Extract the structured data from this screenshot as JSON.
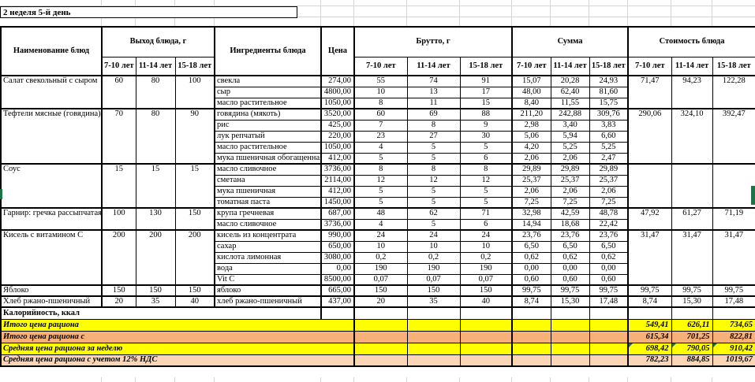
{
  "title": "2 неделя 5-й день",
  "header": {
    "dish": "Наименование блюд",
    "out_group": "Выход блюда, г",
    "ingredients": "Ингредиенты блюда",
    "price": "Цена",
    "brutto_group": "Брутто, г",
    "sum_group": "Сумма",
    "cost_group": "Стоимость блюда",
    "ages": [
      "7-10 лет",
      "11-14 лет",
      "15-18 лет"
    ]
  },
  "dishes": [
    {
      "name": "Салат свекольный с сыром",
      "out": [
        "60",
        "80",
        "100"
      ],
      "cost": [
        "71,47",
        "94,23",
        "122,28"
      ],
      "ingredients": [
        {
          "name": "свекла",
          "price": "274,00",
          "brutto": [
            "55",
            "74",
            "91"
          ],
          "sum": [
            "15,07",
            "20,28",
            "24,93"
          ]
        },
        {
          "name": "сыр",
          "price": "4800,00",
          "brutto": [
            "10",
            "13",
            "17"
          ],
          "sum": [
            "48,00",
            "62,40",
            "81,60"
          ]
        },
        {
          "name": "масло растительное",
          "price": "1050,00",
          "brutto": [
            "8",
            "11",
            "15"
          ],
          "sum": [
            "8,40",
            "11,55",
            "15,75"
          ]
        }
      ]
    },
    {
      "name": "Тефтели мясные (говядина)",
      "out": [
        "70",
        "80",
        "90"
      ],
      "cost": [
        "290,06",
        "324,10",
        "392,47"
      ],
      "ingredients": [
        {
          "name": "говядина (мякоть)",
          "price": "3520,00",
          "brutto": [
            "60",
            "69",
            "88"
          ],
          "sum": [
            "211,20",
            "242,88",
            "309,76"
          ]
        },
        {
          "name": "рис",
          "price": "425,00",
          "brutto": [
            "7",
            "8",
            "9"
          ],
          "sum": [
            "2,98",
            "3,40",
            "3,83"
          ]
        },
        {
          "name": "лук репчатый",
          "price": "220,00",
          "brutto": [
            "23",
            "27",
            "30"
          ],
          "sum": [
            "5,06",
            "5,94",
            "6,60"
          ]
        },
        {
          "name": "масло растительное",
          "price": "1050,00",
          "brutto": [
            "4",
            "5",
            "5"
          ],
          "sum": [
            "4,20",
            "5,25",
            "5,25"
          ]
        },
        {
          "name": "мука пшеничная обогащенная",
          "price": "412,00",
          "brutto": [
            "5",
            "5",
            "6"
          ],
          "sum": [
            "2,06",
            "2,06",
            "2,47"
          ]
        }
      ]
    },
    {
      "name": "Соус",
      "out": [
        "15",
        "15",
        "15"
      ],
      "cost": [
        "",
        "",
        ""
      ],
      "ingredients": [
        {
          "name": "масло сливочное",
          "price": "3736,00",
          "brutto": [
            "8",
            "8",
            "8"
          ],
          "sum": [
            "29,89",
            "29,89",
            "29,89"
          ]
        },
        {
          "name": "сметана",
          "price": "2114,00",
          "brutto": [
            "12",
            "12",
            "12"
          ],
          "sum": [
            "25,37",
            "25,37",
            "25,37"
          ]
        },
        {
          "name": "мука пшеничная",
          "price": "412,00",
          "brutto": [
            "5",
            "5",
            "5"
          ],
          "sum": [
            "2,06",
            "2,06",
            "2,06"
          ]
        },
        {
          "name": "томатная паста",
          "price": "1450,00",
          "brutto": [
            "5",
            "5",
            "5"
          ],
          "sum": [
            "7,25",
            "7,25",
            "7,25"
          ]
        }
      ]
    },
    {
      "name": "Гарнир: гречка рассыпчатая",
      "out": [
        "100",
        "130",
        "150"
      ],
      "cost": [
        "47,92",
        "61,27",
        "71,19"
      ],
      "ingredients": [
        {
          "name": "крупа гречневая",
          "price": "687,00",
          "brutto": [
            "48",
            "62",
            "71"
          ],
          "sum": [
            "32,98",
            "42,59",
            "48,78"
          ]
        },
        {
          "name": "масло сливочное",
          "price": "3736,00",
          "brutto": [
            "4",
            "5",
            "6"
          ],
          "sum": [
            "14,94",
            "18,68",
            "22,42"
          ]
        }
      ]
    },
    {
      "name": "Кисель с витамином С",
      "out": [
        "200",
        "200",
        "200"
      ],
      "cost": [
        "31,47",
        "31,47",
        "31,47"
      ],
      "ingredients": [
        {
          "name": "кисель из концентрата",
          "price": "990,00",
          "brutto": [
            "24",
            "24",
            "24"
          ],
          "sum": [
            "23,76",
            "23,76",
            "23,76"
          ]
        },
        {
          "name": "сахар",
          "price": "650,00",
          "brutto": [
            "10",
            "10",
            "10"
          ],
          "sum": [
            "6,50",
            "6,50",
            "6,50"
          ]
        },
        {
          "name": "кислота лимонная",
          "price": "3080,00",
          "brutto": [
            "0,2",
            "0,2",
            "0,2"
          ],
          "sum": [
            "0,62",
            "0,62",
            "0,62"
          ]
        },
        {
          "name": "вода",
          "price": "0,00",
          "brutto": [
            "190",
            "190",
            "190"
          ],
          "sum": [
            "0,00",
            "0,00",
            "0,00"
          ]
        },
        {
          "name": "Vit C",
          "price": "8500,00",
          "brutto": [
            "0,07",
            "0,07",
            "0,07"
          ],
          "sum": [
            "0,60",
            "0,60",
            "0,60"
          ]
        }
      ]
    },
    {
      "name": "Яблоко",
      "out": [
        "150",
        "150",
        "150"
      ],
      "cost": [
        "99,75",
        "99,75",
        "99,75"
      ],
      "ingredients": [
        {
          "name": "яблоко",
          "price": "665,00",
          "brutto": [
            "150",
            "150",
            "150"
          ],
          "sum": [
            "99,75",
            "99,75",
            "99,75"
          ]
        }
      ]
    },
    {
      "name": "Хлеб ржано-пшеничный",
      "out": [
        "20",
        "35",
        "40"
      ],
      "cost": [
        "8,74",
        "15,30",
        "17,48"
      ],
      "ingredients": [
        {
          "name": "хлеб ржано-пшеничный",
          "price": "437,00",
          "brutto": [
            "20",
            "35",
            "40"
          ],
          "sum": [
            "8,74",
            "15,30",
            "17,48"
          ]
        }
      ]
    }
  ],
  "calories_label": "Калорийность, ккал",
  "totals": [
    {
      "label": "Итого цена рациона",
      "values": [
        "549,41",
        "626,11",
        "734,65"
      ],
      "bg": "#FFFF00",
      "marks": false
    },
    {
      "label": "Итого цена рациона с",
      "values": [
        "615,34",
        "701,25",
        "822,81"
      ],
      "bg": "#F7B077",
      "marks": false
    },
    {
      "label": "Средняя цена рациона за неделю",
      "values": [
        "698,42",
        "790,05",
        "910,42"
      ],
      "bg": "#FFFF00",
      "marks": true
    },
    {
      "label": "Средняя цена рациона с учетом 12% НДС",
      "values": [
        "782,23",
        "884,85",
        "1019,67"
      ],
      "bg": "#FBD5B5",
      "marks": false
    }
  ],
  "colors": {
    "highlight_yellow": "#FFFF00",
    "highlight_orange": "#F7B077",
    "highlight_peach": "#FBD5B5",
    "marker_green": "#1F7244",
    "gridline_gray": "#D4D4D4"
  }
}
